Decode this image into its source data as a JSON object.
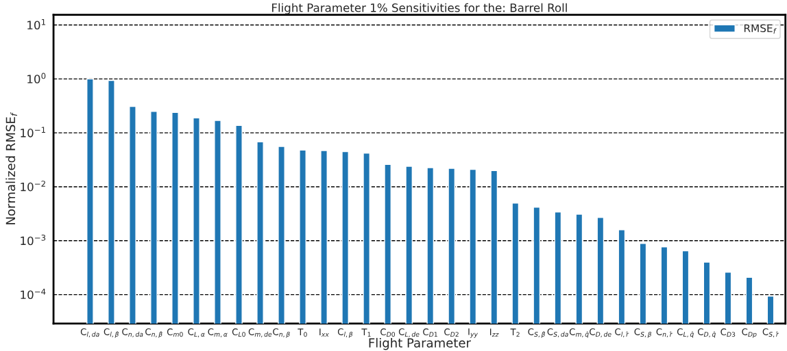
{
  "chart_data": {
    "type": "bar",
    "title": "Flight Parameter 1% Sensitivities for the: Barrel Roll",
    "xlabel": "Flight Parameter",
    "ylabel": "Normalized RMSE$_{f}$",
    "categories": [
      "C$_{l,da}$",
      "C$_{l,β̂}$",
      "C$_{n,da}$",
      "C$_{n,β̂}$",
      "C$_{m0}$",
      "C$_{L,α}$",
      "C$_{m,α}$",
      "C$_{L0}$",
      "C$_{m,de}$",
      "C$_{n,β}$",
      "T$_{0}$",
      "I$_{xx}$",
      "C$_{l,β}$",
      "T$_{1}$",
      "C$_{D0}$",
      "C$_{L,de}$",
      "C$_{D1}$",
      "C$_{D2}$",
      "I$_{yy}$",
      "I$_{zz}$",
      "T$_{2}$",
      "C$_{S,β̂}$",
      "C$_{S,da}$",
      "C$_{m,q̂}$",
      "C$_{D,de}$",
      "C$_{l,r̂}$",
      "C$_{S,β}$",
      "C$_{n,r̂}$",
      "C$_{L,q̂}$",
      "C$_{D,q̂}$",
      "C$_{D3}$",
      "C$_{Dp}$",
      "C$_{S,r̂}$"
    ],
    "series": [
      {
        "name": "RMSE$_{f}$",
        "color": "#1f77b4",
        "values": [
          1.0,
          0.94,
          0.31,
          0.25,
          0.24,
          0.19,
          0.17,
          0.137,
          0.068,
          0.056,
          0.048,
          0.047,
          0.045,
          0.042,
          0.026,
          0.024,
          0.0226,
          0.022,
          0.021,
          0.02,
          0.005,
          0.0042,
          0.0034,
          0.0031,
          0.0027,
          0.0016,
          0.00089,
          0.00077,
          0.00065,
          0.0004,
          0.00026,
          0.00021,
          9.4e-05
        ]
      }
    ],
    "log": "y",
    "ylim": [
      2.9e-05,
      15.5
    ],
    "yticks": [
      {
        "value": 0.0001,
        "label": "10$^{−4}$"
      },
      {
        "value": 0.001,
        "label": "10$^{−3}$"
      },
      {
        "value": 0.01,
        "label": "10$^{−2}$"
      },
      {
        "value": 0.1,
        "label": "10$^{−1}$"
      },
      {
        "value": 1,
        "label": "10$^{0}$"
      },
      {
        "value": 10,
        "label": "10$^{1}$"
      }
    ],
    "grid": "y",
    "line_style": "dashed",
    "legend": "top right"
  }
}
